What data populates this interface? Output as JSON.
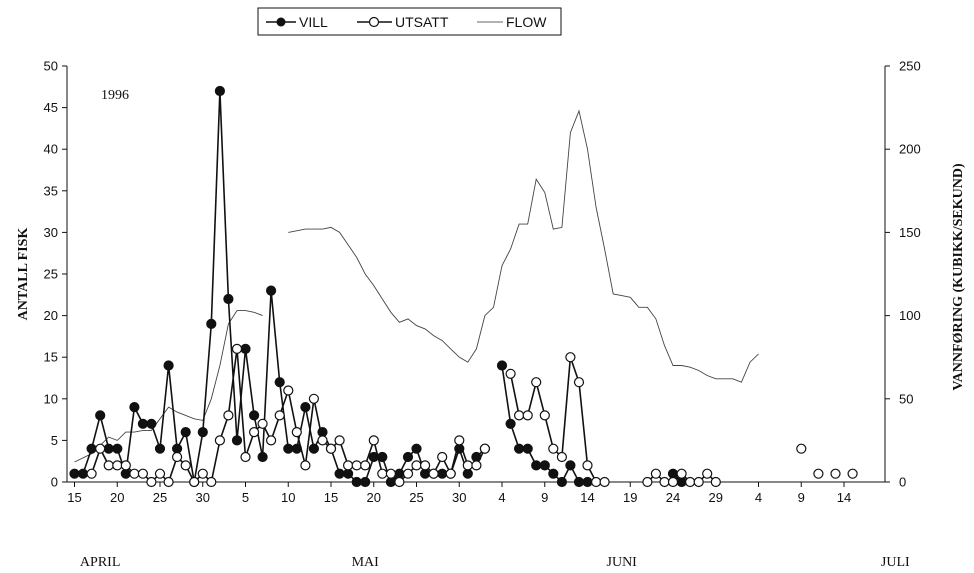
{
  "chart_data": {
    "type": "line",
    "year_label": "1996",
    "left_axis": {
      "label": "ANTALL FISK",
      "min": 0,
      "max": 50,
      "ticks": [
        0,
        5,
        10,
        15,
        20,
        25,
        30,
        35,
        40,
        45,
        50
      ]
    },
    "right_axis": {
      "label": "VANNFØRING (KUBIKK/SEKUND)",
      "min": 0,
      "max": 250,
      "ticks": [
        0,
        50,
        100,
        150,
        200,
        250
      ]
    },
    "x_axis": {
      "unit": "day of 1996 (1 = 15 April)",
      "min": 1,
      "max": 95,
      "ticks": [
        {
          "day": 1,
          "label": "15"
        },
        {
          "day": 6,
          "label": "20"
        },
        {
          "day": 11,
          "label": "25"
        },
        {
          "day": 16,
          "label": "30"
        },
        {
          "day": 21,
          "label": "5"
        },
        {
          "day": 26,
          "label": "10"
        },
        {
          "day": 31,
          "label": "15"
        },
        {
          "day": 36,
          "label": "20"
        },
        {
          "day": 41,
          "label": "25"
        },
        {
          "day": 46,
          "label": "30"
        },
        {
          "day": 51,
          "label": "4"
        },
        {
          "day": 56,
          "label": "9"
        },
        {
          "day": 61,
          "label": "14"
        },
        {
          "day": 66,
          "label": "19"
        },
        {
          "day": 71,
          "label": "24"
        },
        {
          "day": 76,
          "label": "29"
        },
        {
          "day": 81,
          "label": "4"
        },
        {
          "day": 86,
          "label": "9"
        },
        {
          "day": 91,
          "label": "14"
        }
      ],
      "months": [
        {
          "day": 4,
          "label": "APRIL"
        },
        {
          "day": 35,
          "label": "MAI"
        },
        {
          "day": 65,
          "label": "JUNI"
        },
        {
          "day": 97,
          "label": "JULI"
        }
      ]
    },
    "legend": {
      "position": "top-center",
      "entries": [
        "VILL",
        "UTSATT",
        "FLOW"
      ]
    },
    "series": [
      {
        "name": "VILL",
        "axis": "left",
        "marker": "filled-circle",
        "segments": [
          [
            [
              1,
              1
            ]
          ],
          [
            [
              2,
              1
            ],
            [
              3,
              4
            ],
            [
              4,
              8
            ],
            [
              5,
              4
            ],
            [
              6,
              4
            ],
            [
              7,
              1
            ],
            [
              8,
              9
            ],
            [
              9,
              7
            ],
            [
              10,
              7
            ],
            [
              11,
              4
            ],
            [
              12,
              14
            ],
            [
              13,
              4
            ],
            [
              14,
              6
            ],
            [
              15,
              0
            ],
            [
              16,
              6
            ],
            [
              17,
              19
            ],
            [
              18,
              47
            ],
            [
              19,
              22
            ],
            [
              20,
              5
            ],
            [
              21,
              16
            ],
            [
              22,
              8
            ],
            [
              23,
              3
            ],
            [
              24,
              23
            ],
            [
              25,
              12
            ],
            [
              26,
              4
            ],
            [
              27,
              4
            ],
            [
              28,
              9
            ],
            [
              29,
              4
            ],
            [
              30,
              6
            ],
            [
              31,
              4
            ],
            [
              32,
              1
            ],
            [
              33,
              1
            ],
            [
              34,
              0
            ],
            [
              35,
              0
            ],
            [
              36,
              3
            ],
            [
              37,
              3
            ],
            [
              38,
              0
            ],
            [
              39,
              1
            ],
            [
              40,
              3
            ],
            [
              41,
              4
            ],
            [
              42,
              1
            ],
            [
              43,
              1
            ],
            [
              44,
              1
            ],
            [
              45,
              1
            ],
            [
              46,
              4
            ],
            [
              47,
              1
            ],
            [
              48,
              3
            ],
            [
              49,
              4
            ]
          ],
          [
            [
              51,
              14
            ],
            [
              52,
              7
            ],
            [
              53,
              4
            ],
            [
              54,
              4
            ],
            [
              55,
              2
            ],
            [
              56,
              2
            ],
            [
              57,
              1
            ],
            [
              58,
              0
            ],
            [
              59,
              2
            ],
            [
              60,
              0
            ],
            [
              61,
              0
            ]
          ],
          [
            [
              71,
              1
            ],
            [
              72,
              0
            ]
          ]
        ]
      },
      {
        "name": "UTSATT",
        "axis": "left",
        "marker": "open-circle",
        "segments": [
          [
            [
              3,
              1
            ],
            [
              4,
              4
            ],
            [
              5,
              2
            ],
            [
              6,
              2
            ],
            [
              7,
              2
            ],
            [
              8,
              1
            ],
            [
              9,
              1
            ],
            [
              10,
              0
            ],
            [
              11,
              1
            ],
            [
              12,
              0
            ],
            [
              13,
              3
            ],
            [
              14,
              2
            ],
            [
              15,
              0
            ],
            [
              16,
              1
            ],
            [
              17,
              0
            ],
            [
              18,
              5
            ],
            [
              19,
              8
            ],
            [
              20,
              16
            ],
            [
              21,
              3
            ],
            [
              22,
              6
            ],
            [
              23,
              7
            ],
            [
              24,
              5
            ],
            [
              25,
              8
            ],
            [
              26,
              11
            ],
            [
              27,
              6
            ],
            [
              28,
              2
            ],
            [
              29,
              10
            ],
            [
              30,
              5
            ],
            [
              31,
              4
            ],
            [
              32,
              5
            ],
            [
              33,
              2
            ],
            [
              34,
              2
            ],
            [
              35,
              2
            ],
            [
              36,
              5
            ],
            [
              37,
              1
            ],
            [
              38,
              1
            ],
            [
              39,
              0
            ],
            [
              40,
              1
            ],
            [
              41,
              2
            ],
            [
              42,
              2
            ],
            [
              43,
              1
            ],
            [
              44,
              3
            ],
            [
              45,
              1
            ],
            [
              46,
              5
            ],
            [
              47,
              2
            ],
            [
              48,
              2
            ],
            [
              49,
              4
            ]
          ],
          [
            [
              52,
              13
            ],
            [
              53,
              8
            ],
            [
              54,
              8
            ],
            [
              55,
              12
            ],
            [
              56,
              8
            ],
            [
              57,
              4
            ],
            [
              58,
              3
            ],
            [
              59,
              15
            ],
            [
              60,
              12
            ],
            [
              61,
              2
            ],
            [
              62,
              0
            ],
            [
              63,
              0
            ]
          ],
          [
            [
              68,
              0
            ],
            [
              69,
              1
            ],
            [
              70,
              0
            ],
            [
              71,
              0
            ],
            [
              72,
              1
            ],
            [
              73,
              0
            ],
            [
              74,
              0
            ],
            [
              75,
              1
            ],
            [
              76,
              0
            ]
          ],
          [
            [
              86,
              4
            ]
          ],
          [
            [
              88,
              1
            ]
          ],
          [
            [
              90,
              1
            ]
          ],
          [
            [
              92,
              1
            ]
          ]
        ]
      },
      {
        "name": "FLOW",
        "axis": "right",
        "marker": "none",
        "segments": [
          [
            [
              1,
              12
            ],
            [
              3,
              17
            ],
            [
              5,
              27
            ],
            [
              6,
              25
            ],
            [
              7,
              30
            ],
            [
              8,
              30
            ],
            [
              9,
              31
            ],
            [
              10,
              31
            ],
            [
              12,
              45
            ],
            [
              13,
              42
            ],
            [
              15,
              38
            ],
            [
              16,
              37
            ],
            [
              17,
              50
            ],
            [
              18,
              70
            ],
            [
              19,
              95
            ],
            [
              20,
              103
            ],
            [
              21,
              103
            ],
            [
              22,
              102
            ],
            [
              23,
              100
            ]
          ],
          [
            [
              26,
              150
            ],
            [
              28,
              152
            ],
            [
              30,
              152
            ],
            [
              31,
              153
            ],
            [
              32,
              150
            ],
            [
              34,
              135
            ],
            [
              35,
              125
            ],
            [
              36,
              118
            ],
            [
              37,
              110
            ],
            [
              38,
              102
            ],
            [
              39,
              96
            ],
            [
              40,
              98
            ],
            [
              41,
              94
            ],
            [
              42,
              92
            ],
            [
              43,
              88
            ],
            [
              44,
              85
            ],
            [
              45,
              80
            ],
            [
              46,
              75
            ],
            [
              47,
              72
            ],
            [
              48,
              80
            ],
            [
              49,
              100
            ],
            [
              50,
              105
            ],
            [
              51,
              130
            ],
            [
              52,
              140
            ],
            [
              53,
              155
            ],
            [
              54,
              155
            ],
            [
              55,
              182
            ],
            [
              56,
              174
            ],
            [
              57,
              152
            ],
            [
              58,
              153
            ],
            [
              59,
              210
            ],
            [
              60,
              223
            ],
            [
              61,
              200
            ],
            [
              62,
              165
            ],
            [
              63,
              140
            ],
            [
              64,
              113
            ],
            [
              65,
              112
            ],
            [
              66,
              111
            ],
            [
              67,
              105
            ],
            [
              68,
              105
            ],
            [
              69,
              98
            ],
            [
              70,
              82
            ],
            [
              71,
              70
            ],
            [
              72,
              70
            ],
            [
              73,
              69
            ],
            [
              74,
              67
            ],
            [
              75,
              64
            ],
            [
              76,
              62
            ],
            [
              77,
              62
            ],
            [
              78,
              62
            ],
            [
              79,
              60
            ],
            [
              80,
              72
            ],
            [
              81,
              77
            ]
          ]
        ]
      }
    ]
  }
}
